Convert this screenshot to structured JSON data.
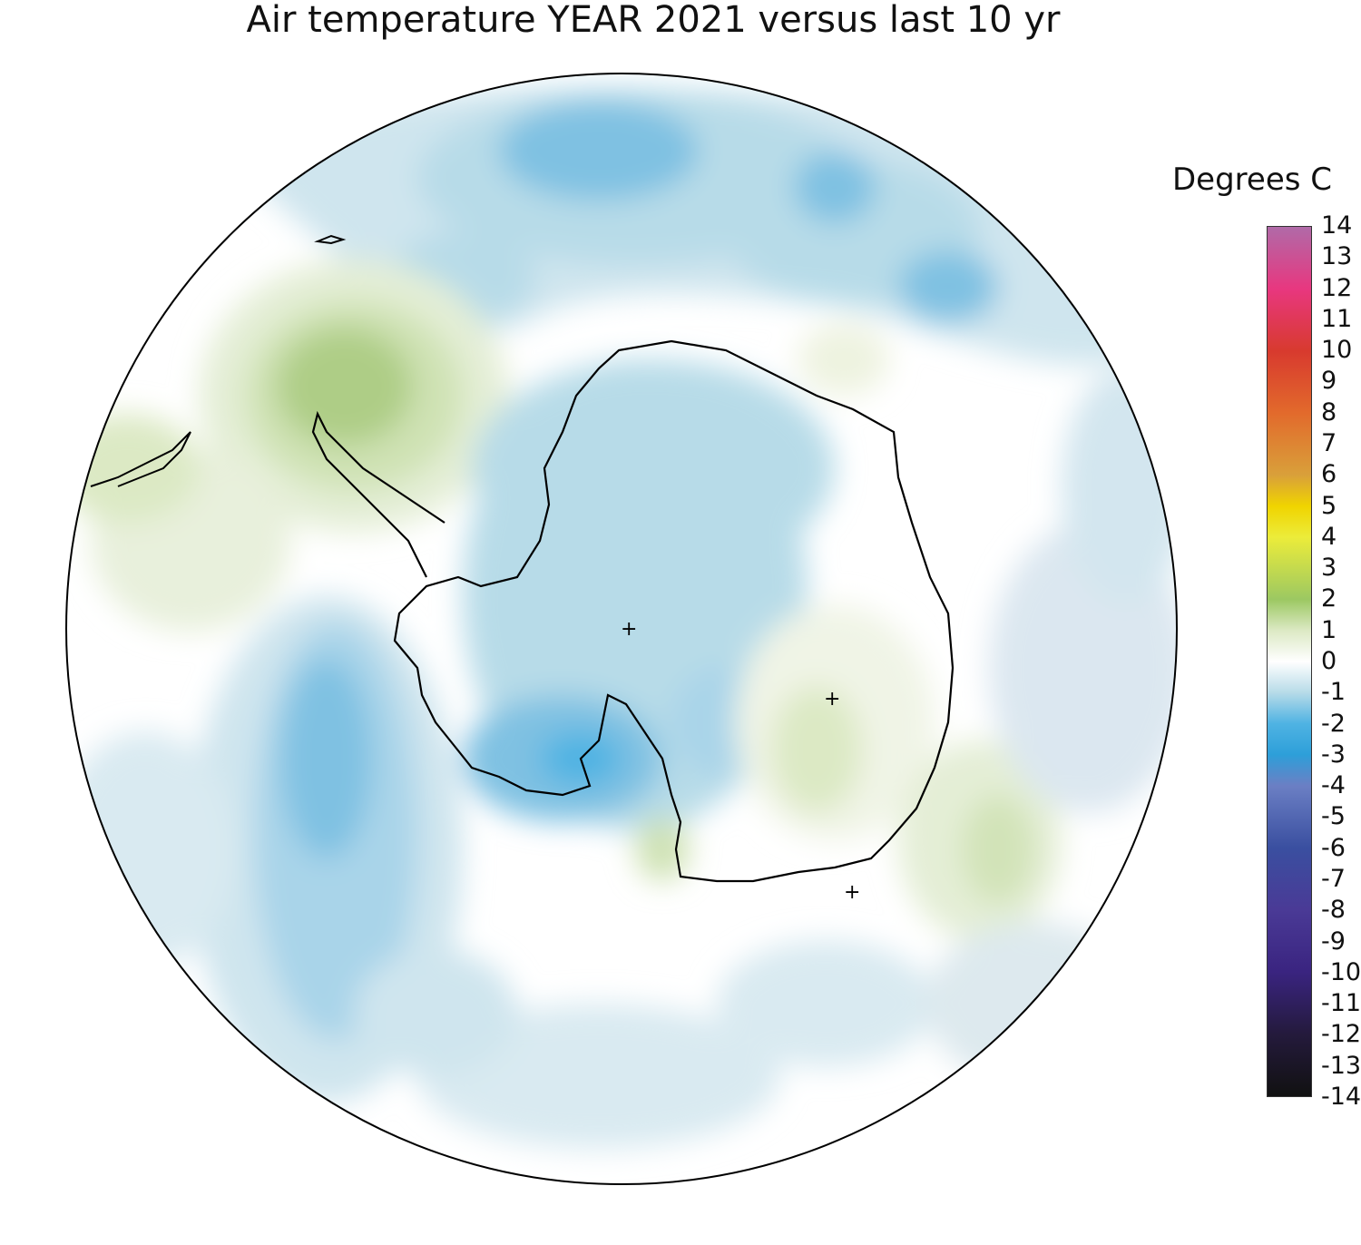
{
  "title": "Air temperature YEAR 2021 versus last 10 yr",
  "legend": {
    "title": "Degrees C",
    "min": -14,
    "max": 14,
    "ticks": [
      "14",
      "13",
      "12",
      "11",
      "10",
      "9",
      "8",
      "7",
      "6",
      "5",
      "4",
      "3",
      "2",
      "1",
      "0",
      "-1",
      "-2",
      "-3",
      "-4",
      "-5",
      "-6",
      "-7",
      "-8",
      "-9",
      "-10",
      "-11",
      "-12",
      "-13",
      "-14"
    ],
    "colors": {
      "14": "#b06aa8",
      "12": "#e8377f",
      "10": "#d83a2e",
      "8": "#e26a2c",
      "6": "#d9a03a",
      "5": "#f0d400",
      "4": "#ecec3a",
      "2": "#9cc862",
      "1": "#dce9c4",
      "0": "#ffffff",
      "-1": "#b7dbe8",
      "-2": "#4fb3e3",
      "-3": "#2d9fd9",
      "-4": "#6b7fc4",
      "-6": "#3a4fa0",
      "-8": "#4a3a96",
      "-10": "#3a2480",
      "-12": "#241a3c",
      "-14": "#111111"
    }
  },
  "map": {
    "projection": "south polar stereographic",
    "region": "Antarctica and Southern Ocean",
    "markers": [
      "+",
      "+",
      "+"
    ]
  }
}
